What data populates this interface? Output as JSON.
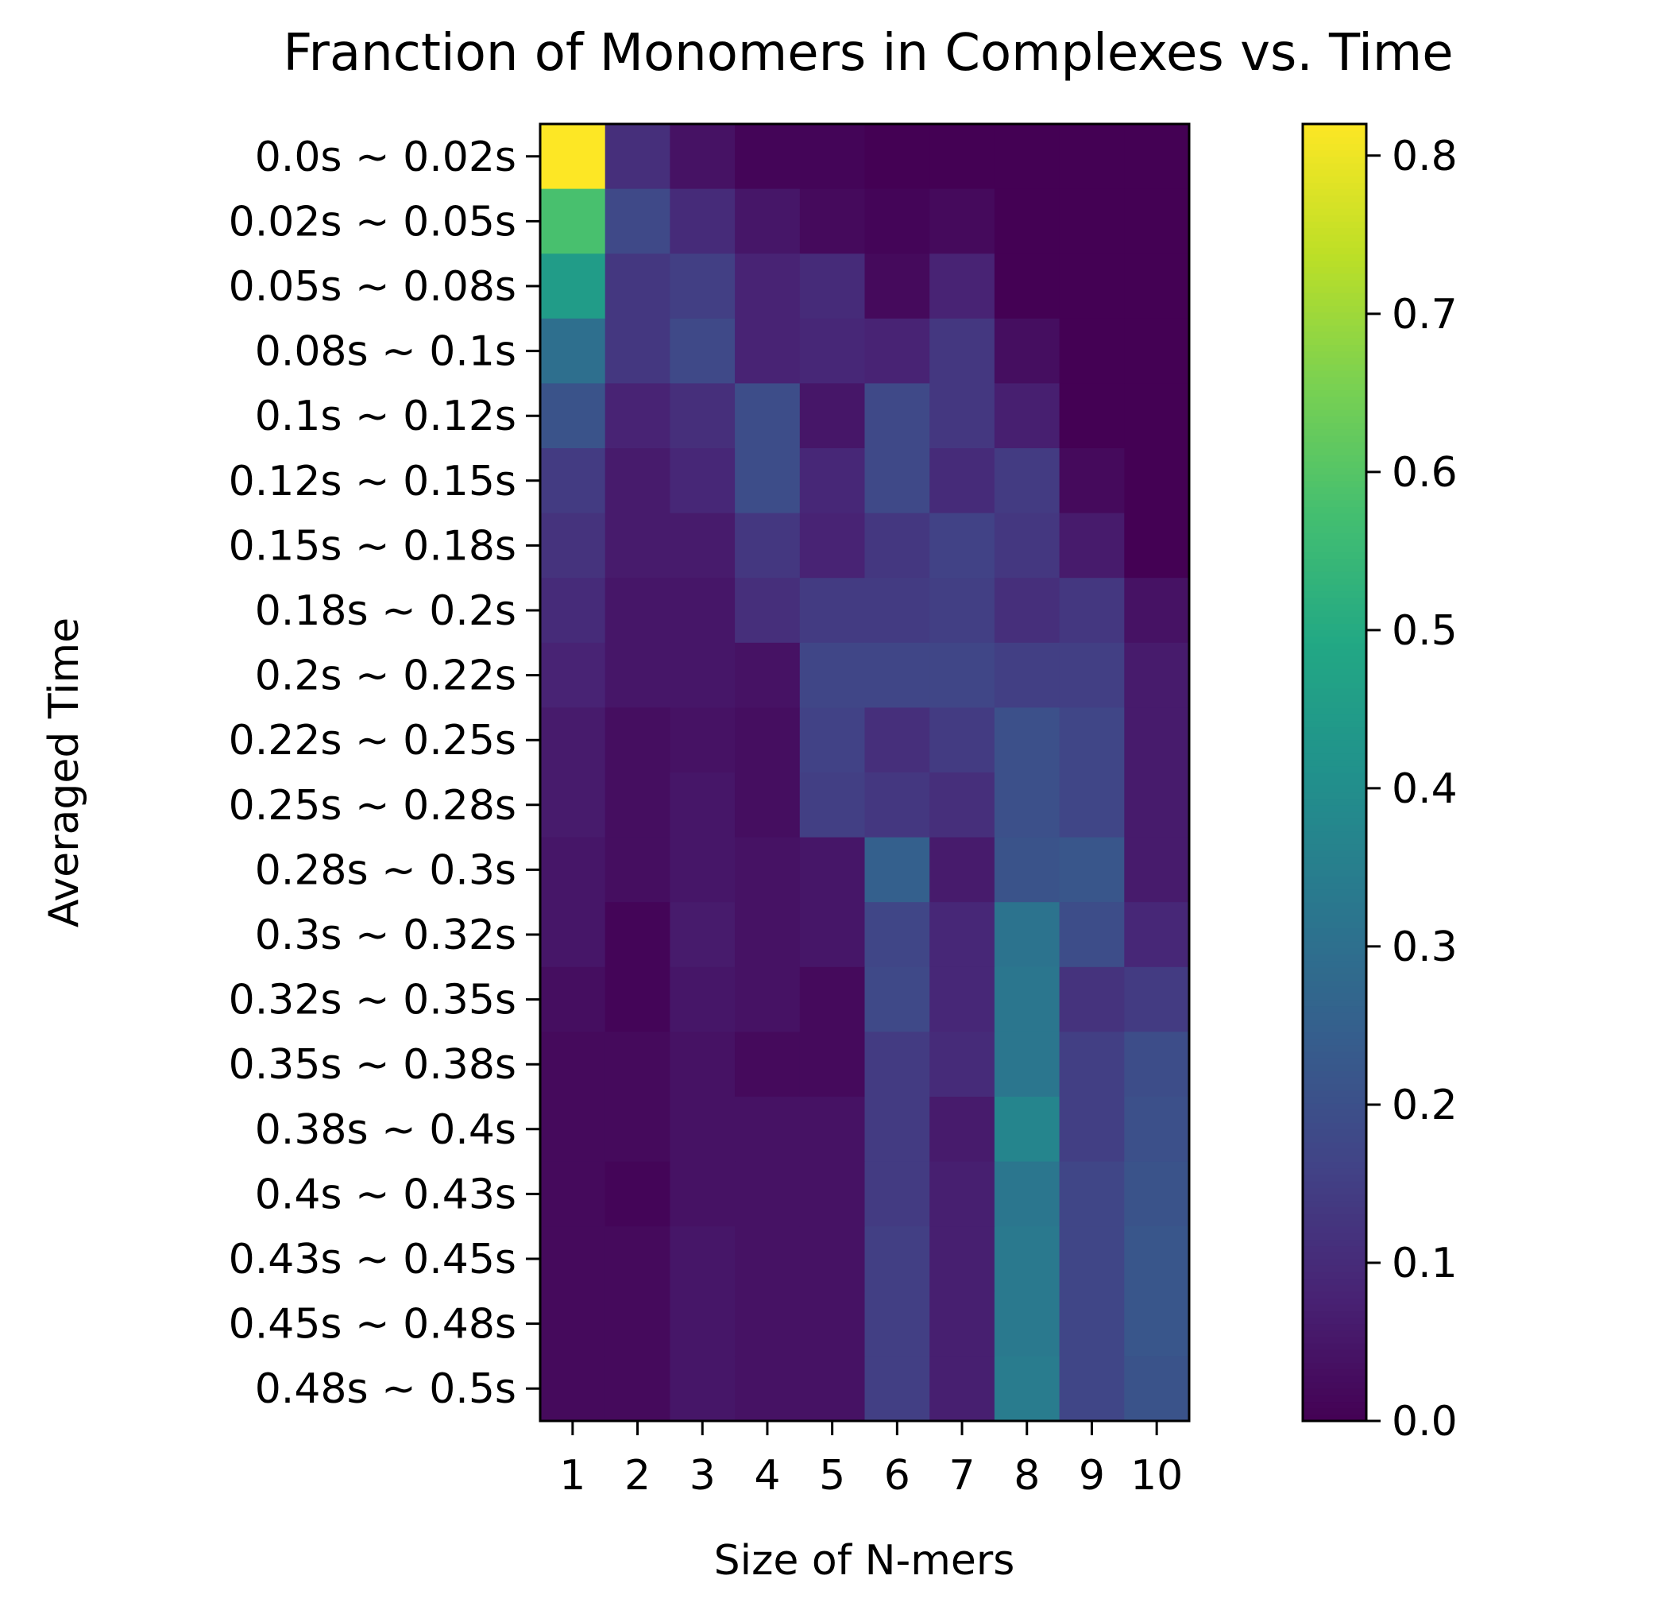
{
  "chart_data": {
    "type": "heatmap",
    "title": "Franction of Monomers in Complexes vs. Time",
    "xlabel": "Size of N-mers",
    "ylabel": "Averaged Time",
    "x": [
      1,
      2,
      3,
      4,
      5,
      6,
      7,
      8,
      9,
      10
    ],
    "y": [
      "0.0s ~ 0.02s",
      "0.02s ~ 0.05s",
      "0.05s ~ 0.08s",
      "0.08s ~ 0.1s",
      "0.1s ~ 0.12s",
      "0.12s ~ 0.15s",
      "0.15s ~ 0.18s",
      "0.18s ~ 0.2s",
      "0.2s ~ 0.22s",
      "0.22s ~ 0.25s",
      "0.25s ~ 0.28s",
      "0.28s ~ 0.3s",
      "0.3s ~ 0.32s",
      "0.32s ~ 0.35s",
      "0.35s ~ 0.38s",
      "0.38s ~ 0.4s",
      "0.4s ~ 0.43s",
      "0.43s ~ 0.45s",
      "0.45s ~ 0.48s",
      "0.48s ~ 0.5s"
    ],
    "values": [
      [
        0.82,
        0.11,
        0.04,
        0.01,
        0.01,
        0.0,
        0.0,
        0.0,
        0.0,
        0.0
      ],
      [
        0.58,
        0.18,
        0.1,
        0.05,
        0.02,
        0.01,
        0.02,
        0.0,
        0.0,
        0.0
      ],
      [
        0.45,
        0.13,
        0.15,
        0.08,
        0.1,
        0.02,
        0.08,
        0.0,
        0.0,
        0.0
      ],
      [
        0.3,
        0.13,
        0.18,
        0.08,
        0.09,
        0.08,
        0.13,
        0.03,
        0.0,
        0.0
      ],
      [
        0.21,
        0.08,
        0.11,
        0.19,
        0.05,
        0.18,
        0.13,
        0.07,
        0.0,
        0.0
      ],
      [
        0.14,
        0.06,
        0.09,
        0.19,
        0.09,
        0.18,
        0.1,
        0.14,
        0.02,
        0.0
      ],
      [
        0.12,
        0.06,
        0.06,
        0.13,
        0.08,
        0.13,
        0.16,
        0.13,
        0.06,
        0.0
      ],
      [
        0.1,
        0.05,
        0.05,
        0.11,
        0.14,
        0.14,
        0.15,
        0.11,
        0.13,
        0.04
      ],
      [
        0.08,
        0.05,
        0.05,
        0.04,
        0.17,
        0.17,
        0.17,
        0.15,
        0.15,
        0.06
      ],
      [
        0.06,
        0.03,
        0.04,
        0.03,
        0.16,
        0.11,
        0.14,
        0.2,
        0.17,
        0.06
      ],
      [
        0.06,
        0.03,
        0.05,
        0.03,
        0.15,
        0.13,
        0.11,
        0.2,
        0.17,
        0.06
      ],
      [
        0.05,
        0.03,
        0.05,
        0.04,
        0.05,
        0.25,
        0.06,
        0.21,
        0.22,
        0.06
      ],
      [
        0.05,
        0.01,
        0.06,
        0.04,
        0.05,
        0.17,
        0.09,
        0.31,
        0.19,
        0.09
      ],
      [
        0.03,
        0.01,
        0.05,
        0.04,
        0.02,
        0.18,
        0.09,
        0.32,
        0.12,
        0.14
      ],
      [
        0.02,
        0.02,
        0.04,
        0.02,
        0.02,
        0.14,
        0.1,
        0.32,
        0.15,
        0.19
      ],
      [
        0.02,
        0.02,
        0.04,
        0.04,
        0.04,
        0.14,
        0.06,
        0.37,
        0.15,
        0.2
      ],
      [
        0.02,
        0.01,
        0.04,
        0.04,
        0.04,
        0.14,
        0.07,
        0.32,
        0.17,
        0.21
      ],
      [
        0.02,
        0.02,
        0.05,
        0.04,
        0.04,
        0.15,
        0.07,
        0.33,
        0.17,
        0.22
      ],
      [
        0.02,
        0.02,
        0.05,
        0.04,
        0.04,
        0.15,
        0.07,
        0.33,
        0.17,
        0.22
      ],
      [
        0.02,
        0.02,
        0.05,
        0.04,
        0.04,
        0.15,
        0.07,
        0.34,
        0.17,
        0.21
      ]
    ],
    "colorscale": "viridis",
    "vmin": 0.0,
    "vmax": 0.82,
    "colorbar_ticks": [
      0.0,
      0.1,
      0.2,
      0.3,
      0.4,
      0.5,
      0.6,
      0.7,
      0.8
    ],
    "colorbar_tick_labels": [
      "0.0",
      "0.1",
      "0.2",
      "0.3",
      "0.4",
      "0.5",
      "0.6",
      "0.7",
      "0.8"
    ],
    "grid": false
  }
}
